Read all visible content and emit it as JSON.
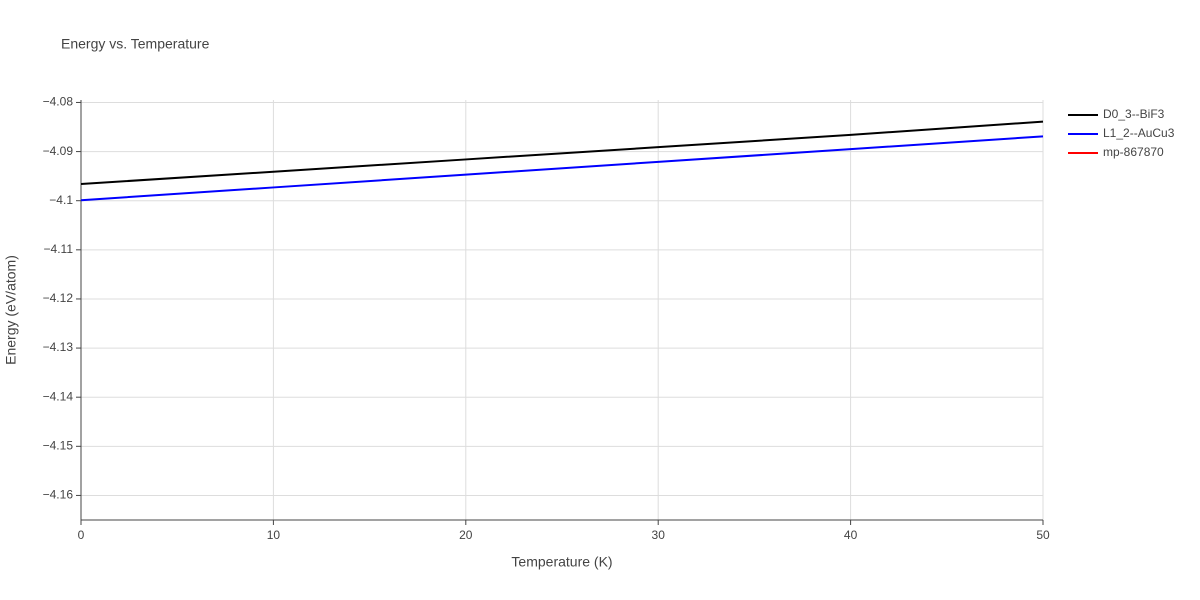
{
  "chart_data": {
    "type": "line",
    "title": "Energy vs. Temperature",
    "x_label": "Temperature (K)",
    "y_label": "Energy (eV/atom)",
    "x": [
      0,
      10,
      20,
      30,
      40,
      50
    ],
    "series": [
      {
        "name": "D0_3--BiF3",
        "color": "#000000",
        "values": [
          -4.0966,
          -4.0941,
          -4.0916,
          -4.0891,
          -4.0866,
          -4.0839
        ]
      },
      {
        "name": "L1_2--AuCu3",
        "color": "#0000ff",
        "values": [
          -4.0999,
          -4.0973,
          -4.0947,
          -4.0921,
          -4.0895,
          -4.0869
        ]
      },
      {
        "name": "mp-867870",
        "color": "#ff0000",
        "values": [
          null,
          null,
          null,
          null,
          null,
          null
        ]
      }
    ],
    "xlim": [
      0,
      50
    ],
    "xticks": [
      0,
      10,
      20,
      30,
      40,
      50
    ],
    "ylim": [
      -4.165,
      -4.0795
    ],
    "yticks": [
      {
        "value": -4.16,
        "label": "−4.16"
      },
      {
        "value": -4.15,
        "label": "−4.15"
      },
      {
        "value": -4.14,
        "label": "−4.14"
      },
      {
        "value": -4.13,
        "label": "−4.13"
      },
      {
        "value": -4.12,
        "label": "−4.12"
      },
      {
        "value": -4.11,
        "label": "−4.11"
      },
      {
        "value": -4.1,
        "label": "−4.1"
      },
      {
        "value": -4.09,
        "label": "−4.09"
      },
      {
        "value": -4.08,
        "label": "−4.08"
      }
    ],
    "grid": true,
    "legend": "right"
  }
}
